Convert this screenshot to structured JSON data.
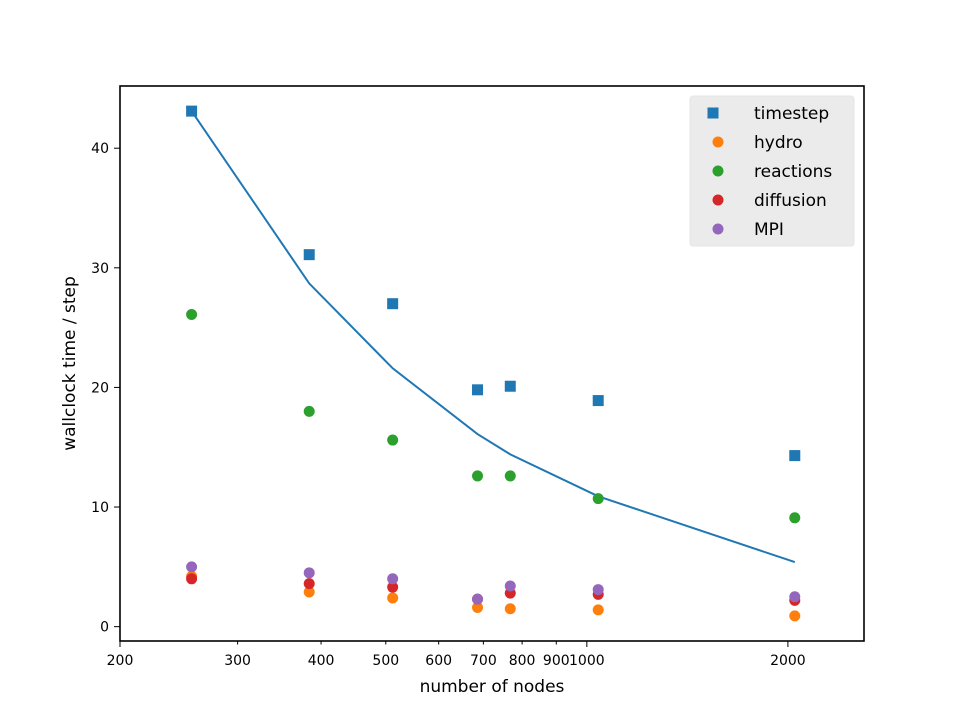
{
  "chart_data": {
    "type": "scatter",
    "xlabel": "number of nodes",
    "ylabel": "wallclock time / step",
    "xscale": "log",
    "xlim": [
      200,
      2600
    ],
    "ylim": [
      -1.2,
      45.2
    ],
    "x_ticks": [
      200,
      300,
      400,
      500,
      600,
      700,
      800,
      900,
      1000,
      2000
    ],
    "y_ticks": [
      0,
      10,
      20,
      30,
      40
    ],
    "grid": false,
    "legend_position": "top-right",
    "x": [
      256,
      384,
      512,
      686,
      768,
      1040,
      2048
    ],
    "series": [
      {
        "name": "timestep",
        "marker": "square",
        "color": "#1f77b4",
        "values": [
          43.1,
          31.1,
          27.0,
          19.8,
          20.1,
          18.9,
          14.3
        ]
      },
      {
        "name": "hydro",
        "marker": "circle",
        "color": "#ff7f0e",
        "values": [
          4.2,
          2.9,
          2.4,
          1.6,
          1.5,
          1.4,
          0.9
        ]
      },
      {
        "name": "reactions",
        "marker": "circle",
        "color": "#2ca02c",
        "values": [
          26.1,
          18.0,
          15.6,
          12.6,
          12.6,
          10.7,
          9.1
        ]
      },
      {
        "name": "diffusion",
        "marker": "circle",
        "color": "#d62728",
        "values": [
          4.0,
          3.6,
          3.3,
          2.3,
          2.8,
          2.7,
          2.2
        ]
      },
      {
        "name": "MPI",
        "marker": "circle",
        "color": "#9467bd",
        "values": [
          5.0,
          4.5,
          4.0,
          2.3,
          3.4,
          3.1,
          2.5
        ]
      }
    ],
    "ideal_scaling_line": {
      "color": "#1f77b4",
      "x": [
        256,
        384,
        512,
        686,
        768,
        1040,
        2048
      ],
      "values": [
        43.1,
        28.7,
        21.6,
        16.1,
        14.4,
        10.9,
        5.4
      ]
    }
  }
}
